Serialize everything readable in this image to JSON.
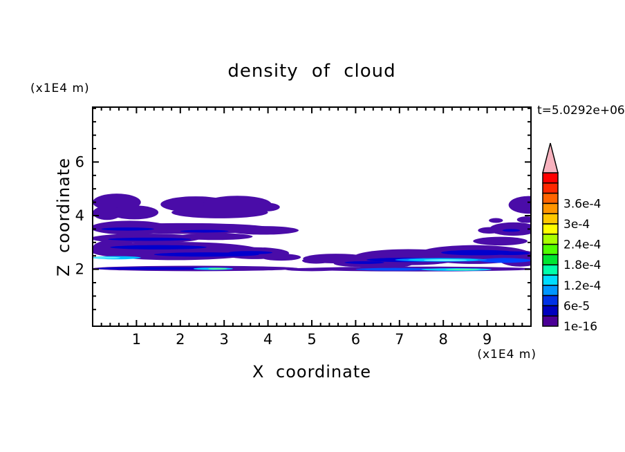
{
  "page": {
    "background": "#FFFFFF",
    "foreground": "#000000"
  },
  "chart_data": {
    "type": "heatmap",
    "title": "density of cloud",
    "time_annotation": "t=5.0292e+06",
    "xlabel": "X coordinate",
    "ylabel": "Z coordinate",
    "x_unit_label": "(x1E4 m)",
    "z_unit_label": "(x1E4 m)",
    "xlim": [
      0,
      10
    ],
    "zlim": [
      0,
      8
    ],
    "x_major_ticks": [
      1,
      2,
      3,
      4,
      5,
      6,
      7,
      8,
      9
    ],
    "x_minor_step": 0.2,
    "z_major_ticks": [
      2,
      4,
      6
    ],
    "z_minor_step": 0.5,
    "grid": false,
    "legend_position": "right-colorbar",
    "colorbar": {
      "tick_labels_top_to_bottom": [
        "3.6e-4",
        "3e-4",
        "2.4e-4",
        "1.8e-4",
        "1.2e-4",
        "6e-5",
        "1e-16"
      ],
      "segment_colors_top_to_bottom": [
        "#FF0000",
        "#FF2800",
        "#FF6400",
        "#FF9600",
        "#FFC800",
        "#FFFF00",
        "#AAFF00",
        "#50FF00",
        "#00E632",
        "#00FFAA",
        "#00DCFF",
        "#0096FF",
        "#0032E6",
        "#0000BE",
        "#4B0096"
      ],
      "overflow_arrow_color": "#F7B2BE"
    },
    "field_palette": {
      "base_purple": "#4A0CA8",
      "streak_navy": "#0000CD",
      "bright_blue": "#0050FF",
      "cyan": "#00BFFF",
      "light_cyan": "#7FFAFF",
      "green": "#57FF9A"
    },
    "clouds": [
      {
        "x": 0.55,
        "z": 4.5,
        "rx": 0.55,
        "rz": 0.32,
        "c": "#4A0CA8"
      },
      {
        "x": 0.95,
        "z": 4.12,
        "rx": 0.55,
        "rz": 0.26,
        "c": "#4A0CA8"
      },
      {
        "x": 0.33,
        "z": 4.1,
        "rx": 0.33,
        "rz": 0.26,
        "c": "#4A0CA8"
      },
      {
        "x": 2.35,
        "z": 4.42,
        "rx": 0.8,
        "rz": 0.3,
        "c": "#4A0CA8"
      },
      {
        "x": 3.3,
        "z": 4.42,
        "rx": 0.78,
        "rz": 0.32,
        "c": "#4A0CA8"
      },
      {
        "x": 2.9,
        "z": 4.12,
        "rx": 1.1,
        "rz": 0.22,
        "c": "#4A0CA8"
      },
      {
        "x": 3.97,
        "z": 4.32,
        "rx": 0.3,
        "rz": 0.16,
        "c": "#4A0CA8"
      },
      {
        "x": 2.1,
        "z": 3.52,
        "rx": 2.0,
        "rz": 0.2,
        "c": "#4A0CA8"
      },
      {
        "x": 0.85,
        "z": 3.55,
        "rx": 0.9,
        "rz": 0.26,
        "c": "#4A0CA8"
      },
      {
        "x": 3.9,
        "z": 3.45,
        "rx": 0.8,
        "rz": 0.16,
        "c": "#4A0CA8"
      },
      {
        "x": 1.2,
        "z": 3.15,
        "rx": 1.25,
        "rz": 0.18,
        "c": "#4A0CA8"
      },
      {
        "x": 2.8,
        "z": 3.22,
        "rx": 0.85,
        "rz": 0.13,
        "c": "#4A0CA8"
      },
      {
        "x": 1.9,
        "z": 2.68,
        "rx": 1.95,
        "rz": 0.34,
        "c": "#4A0CA8"
      },
      {
        "x": 0.5,
        "z": 2.8,
        "rx": 0.5,
        "rz": 0.3,
        "c": "#4A0CA8"
      },
      {
        "x": 3.7,
        "z": 2.6,
        "rx": 0.78,
        "rz": 0.22,
        "c": "#4A0CA8"
      },
      {
        "x": 4.3,
        "z": 2.45,
        "rx": 0.45,
        "rz": 0.13,
        "c": "#4A0CA8"
      },
      {
        "x": 2.35,
        "z": 2.03,
        "rx": 2.35,
        "rz": 0.1,
        "c": "#4A0CA8"
      },
      {
        "x": 5.55,
        "z": 2.4,
        "rx": 0.75,
        "rz": 0.18,
        "c": "#4A0CA8"
      },
      {
        "x": 5.1,
        "z": 2.32,
        "rx": 0.32,
        "rz": 0.11,
        "c": "#4A0CA8"
      },
      {
        "x": 6.05,
        "z": 2.22,
        "rx": 0.55,
        "rz": 0.13,
        "c": "#4A0CA8"
      },
      {
        "x": 5.0,
        "z": 1.99,
        "rx": 0.6,
        "rz": 0.06,
        "c": "#4A0CA8"
      },
      {
        "x": 7.2,
        "z": 2.45,
        "rx": 1.25,
        "rz": 0.3,
        "c": "#4A0CA8"
      },
      {
        "x": 8.7,
        "z": 2.55,
        "rx": 1.3,
        "rz": 0.35,
        "c": "#4A0CA8"
      },
      {
        "x": 9.75,
        "z": 2.4,
        "rx": 0.5,
        "rz": 0.3,
        "c": "#4A0CA8"
      },
      {
        "x": 6.6,
        "z": 2.2,
        "rx": 0.7,
        "rz": 0.16,
        "c": "#4A0CA8"
      },
      {
        "x": 7.4,
        "z": 2.01,
        "rx": 2.7,
        "rz": 0.09,
        "c": "#4A0CA8"
      },
      {
        "x": 9.3,
        "z": 3.05,
        "rx": 0.62,
        "rz": 0.16,
        "c": "#4A0CA8"
      },
      {
        "x": 9.6,
        "z": 3.5,
        "rx": 0.55,
        "rz": 0.25,
        "c": "#4A0CA8"
      },
      {
        "x": 9.05,
        "z": 3.45,
        "rx": 0.26,
        "rz": 0.12,
        "c": "#4A0CA8"
      },
      {
        "x": 9.95,
        "z": 4.4,
        "rx": 0.46,
        "rz": 0.33,
        "c": "#4A0CA8"
      },
      {
        "x": 9.2,
        "z": 3.82,
        "rx": 0.16,
        "rz": 0.09,
        "c": "#4A0CA8"
      },
      {
        "x": 9.9,
        "z": 3.85,
        "rx": 0.22,
        "rz": 0.12,
        "c": "#4A0CA8"
      },
      {
        "x": 0.8,
        "z": 3.5,
        "rx": 0.6,
        "rz": 0.06,
        "c": "#0000CD"
      },
      {
        "x": 1.3,
        "z": 3.12,
        "rx": 0.95,
        "rz": 0.06,
        "c": "#0000CD"
      },
      {
        "x": 2.55,
        "z": 3.42,
        "rx": 0.55,
        "rz": 0.05,
        "c": "#0000CD"
      },
      {
        "x": 1.5,
        "z": 2.82,
        "rx": 1.1,
        "rz": 0.08,
        "c": "#0000CD"
      },
      {
        "x": 2.6,
        "z": 2.55,
        "rx": 1.2,
        "rz": 0.08,
        "c": "#0000CD"
      },
      {
        "x": 3.6,
        "z": 2.62,
        "rx": 0.5,
        "rz": 0.06,
        "c": "#0000CD"
      },
      {
        "x": 1.6,
        "z": 2.03,
        "rx": 1.5,
        "rz": 0.05,
        "c": "#0000CD"
      },
      {
        "x": 7.1,
        "z": 2.35,
        "rx": 0.85,
        "rz": 0.08,
        "c": "#0000CD"
      },
      {
        "x": 8.8,
        "z": 2.62,
        "rx": 0.85,
        "rz": 0.1,
        "c": "#0000CD"
      },
      {
        "x": 9.55,
        "z": 2.6,
        "rx": 0.42,
        "rz": 0.07,
        "c": "#0000CD"
      },
      {
        "x": 9.55,
        "z": 3.45,
        "rx": 0.2,
        "rz": 0.05,
        "c": "#0000CD"
      },
      {
        "x": 6.2,
        "z": 2.25,
        "rx": 0.45,
        "rz": 0.05,
        "c": "#0000CD"
      },
      {
        "x": 6.9,
        "z": 2.0,
        "rx": 0.9,
        "rz": 0.05,
        "c": "#0050FF"
      },
      {
        "x": 9.4,
        "z": 2.33,
        "rx": 0.6,
        "rz": 0.09,
        "c": "#0040FF"
      },
      {
        "x": 0.55,
        "z": 2.43,
        "rx": 0.55,
        "rz": 0.06,
        "c": "#00BFFF"
      },
      {
        "x": 0.33,
        "z": 2.43,
        "rx": 0.3,
        "rz": 0.035,
        "c": "#5CEFFF"
      },
      {
        "x": 2.75,
        "z": 2.02,
        "rx": 0.45,
        "rz": 0.045,
        "c": "#00CFFF"
      },
      {
        "x": 2.85,
        "z": 2.02,
        "rx": 0.22,
        "rz": 0.028,
        "c": "#57FF9A"
      },
      {
        "x": 7.95,
        "z": 2.35,
        "rx": 1.05,
        "rz": 0.07,
        "c": "#0080FF"
      },
      {
        "x": 8.0,
        "z": 2.35,
        "rx": 0.8,
        "rz": 0.05,
        "c": "#00CFFF"
      },
      {
        "x": 8.05,
        "z": 2.34,
        "rx": 0.5,
        "rz": 0.03,
        "c": "#7FFAFF"
      },
      {
        "x": 8.3,
        "z": 1.99,
        "rx": 0.8,
        "rz": 0.05,
        "c": "#00CFFF"
      },
      {
        "x": 8.45,
        "z": 1.99,
        "rx": 0.4,
        "rz": 0.028,
        "c": "#49FFB0"
      }
    ]
  }
}
